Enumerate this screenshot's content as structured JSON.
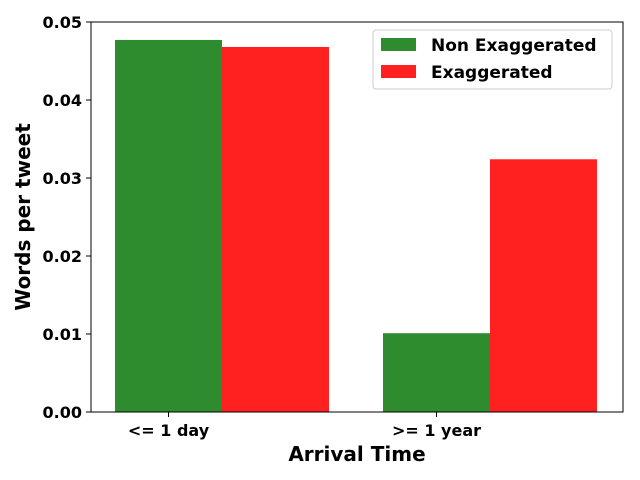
{
  "chart_data": {
    "type": "bar",
    "title": "",
    "xlabel": "Arrival Time",
    "ylabel": "Words per tweet",
    "categories": [
      "<= 1 day",
      ">= 1 year"
    ],
    "series": [
      {
        "name": "Non Exaggerated",
        "values": [
          0.0477,
          0.0101
        ],
        "color": "#2e8b2e"
      },
      {
        "name": "Exaggerated",
        "values": [
          0.0468,
          0.0324
        ],
        "color": "#ff2020"
      }
    ],
    "ylim": [
      0,
      0.05
    ],
    "yticks": [
      "0.00",
      "0.01",
      "0.02",
      "0.03",
      "0.04",
      "0.05"
    ],
    "grid": false,
    "legend_position": "top-right"
  }
}
